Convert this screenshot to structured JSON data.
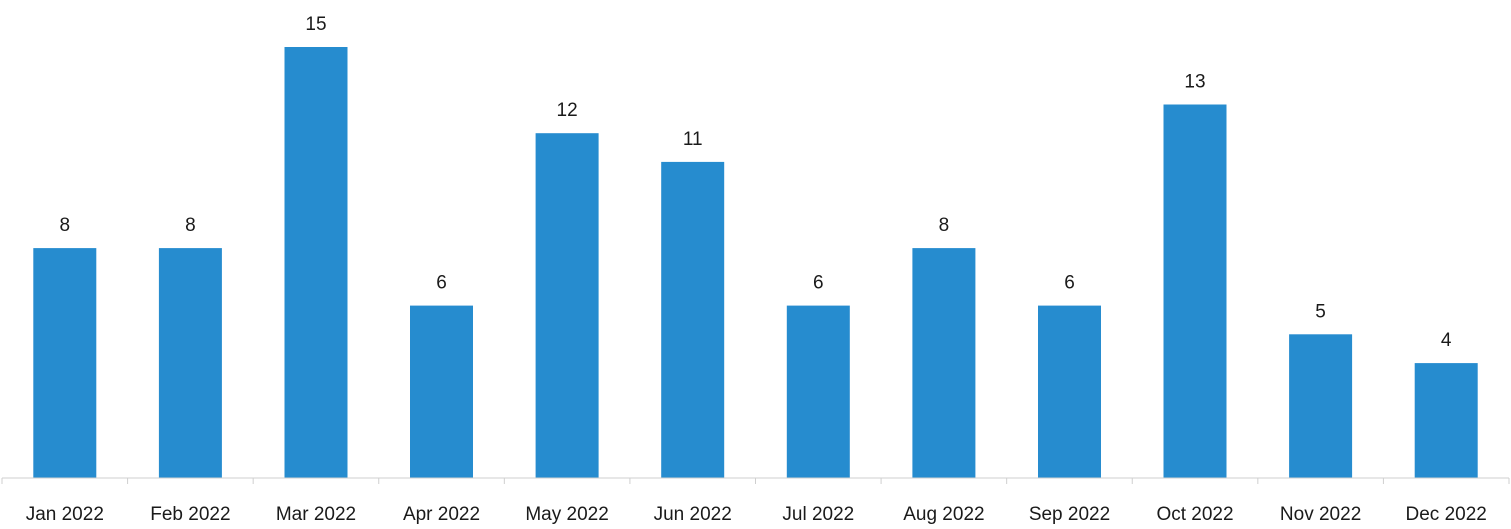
{
  "chart_data": {
    "type": "bar",
    "title": "",
    "xlabel": "",
    "ylabel": "",
    "categories": [
      "Jan 2022",
      "Feb 2022",
      "Mar 2022",
      "Apr 2022",
      "May 2022",
      "Jun 2022",
      "Jul 2022",
      "Aug 2022",
      "Sep 2022",
      "Oct 2022",
      "Nov 2022",
      "Dec 2022"
    ],
    "values": [
      8,
      8,
      15,
      6,
      12,
      11,
      6,
      8,
      6,
      13,
      5,
      4
    ],
    "ylim": [
      0,
      15
    ],
    "grid": false,
    "legend": "none",
    "data_labels": true,
    "colors": {
      "bar": "#268ccf",
      "axis": "#cfcfcf",
      "text": "#1a1a1a"
    }
  }
}
